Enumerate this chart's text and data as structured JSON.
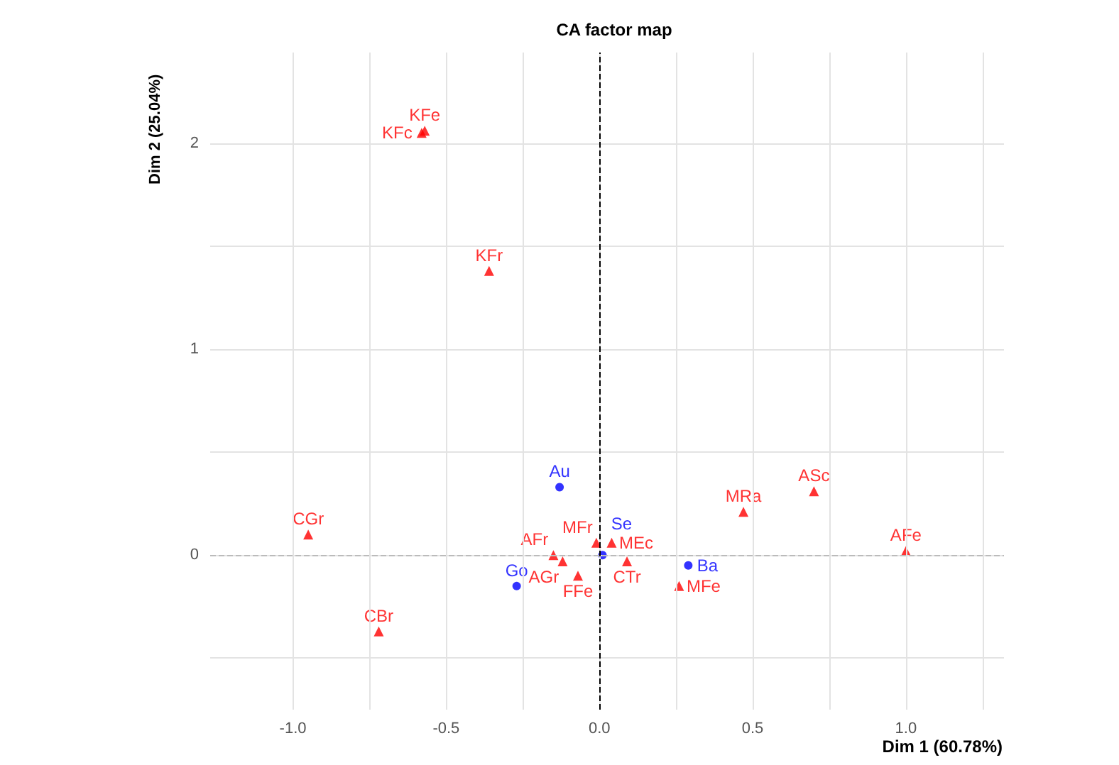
{
  "chart_data": {
    "type": "scatter",
    "title": "CA factor map",
    "xlabel": "Dim 1 (60.78%)",
    "ylabel": "Dim 2 (25.04%)",
    "xlim": [
      -1.27,
      1.32
    ],
    "ylim": [
      -0.75,
      2.44
    ],
    "xticks": [
      {
        "value": -1.0,
        "label": "-1.0"
      },
      {
        "value": -0.75,
        "label": null
      },
      {
        "value": -0.5,
        "label": "-0.5"
      },
      {
        "value": -0.25,
        "label": null
      },
      {
        "value": 0,
        "label": "0.0"
      },
      {
        "value": 0.25,
        "label": null
      },
      {
        "value": 0.5,
        "label": "0.5"
      },
      {
        "value": 0.75,
        "label": null
      },
      {
        "value": 1.0,
        "label": "1.0"
      },
      {
        "value": 1.25,
        "label": null
      }
    ],
    "yticks": [
      {
        "value": -0.5,
        "label": null
      },
      0,
      {
        "value": 0.5,
        "label": null
      },
      1,
      {
        "value": 1.5,
        "label": null
      },
      2
    ],
    "grid": true,
    "series": [
      {
        "color": "#ff0000",
        "marker": "triangle",
        "x": [
          -0.57,
          -0.58,
          -0.36,
          -0.95,
          -0.72,
          -0.01,
          0.04,
          -0.15,
          -0.12,
          -0.07,
          0.09,
          0.26,
          0.47,
          0.7,
          1.0
        ],
        "values": [
          2.06,
          2.05,
          1.38,
          0.1,
          -0.37,
          0.06,
          0.06,
          0.0,
          -0.03,
          -0.1,
          -0.03,
          -0.15,
          0.21,
          0.31,
          0.02
        ],
        "value_labels": [
          "KFe",
          "KFc",
          "KFr",
          "CGr",
          "CBr",
          "MFr",
          "MEc",
          "AFr",
          "AGr",
          "FFe",
          "CTr",
          "MFe",
          "MRa",
          "ASc",
          "AFe"
        ]
      },
      {
        "color": "#0000ff",
        "marker": "circle",
        "x": [
          -0.13,
          -0.27,
          0.01,
          0.29
        ],
        "values": [
          0.33,
          -0.15,
          0.0,
          -0.05
        ],
        "value_labels": [
          "Au",
          "Go",
          "Se",
          "Ba"
        ]
      }
    ],
    "ref_lines": [
      {
        "axis": "x",
        "value": 0,
        "color": "#000000",
        "line_style": "dashed"
      },
      {
        "axis": "y",
        "value": 0,
        "color": "#bbbbbb",
        "line_style": "dashed"
      }
    ]
  }
}
